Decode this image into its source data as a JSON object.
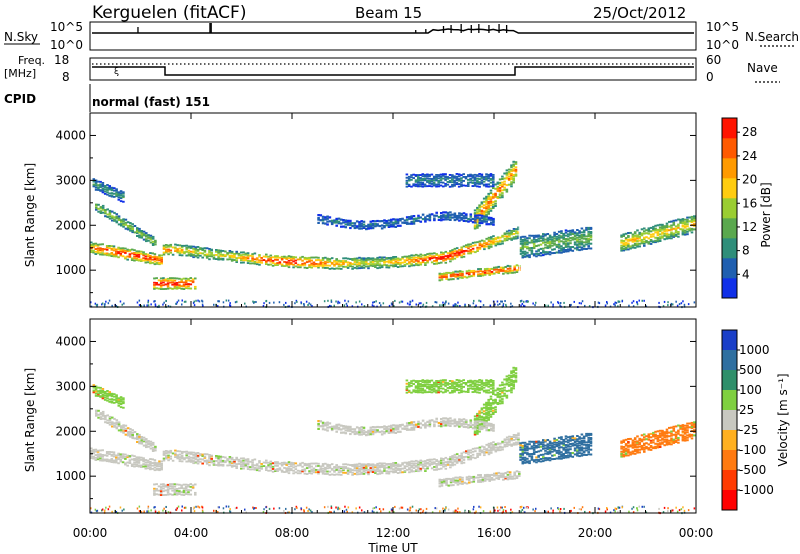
{
  "header": {
    "station": "Kerguelen (fitACF)",
    "beam": "Beam 15",
    "date": "25/Oct/2012"
  },
  "top_panels": {
    "nsky_label": "N.Sky",
    "nsky_ticks": [
      "10^5",
      "10^0"
    ],
    "nsearch_label": "N.Search",
    "nsearch_ticks": [
      "10^5",
      "10^0"
    ],
    "freq_label_1": "Freq.",
    "freq_label_2": "[MHz]",
    "freq_ticks": [
      "18",
      "8"
    ],
    "nave_label": "Nave",
    "nave_ticks": [
      "60",
      "0"
    ],
    "cpid_label": "CPID",
    "cpid_value": "normal (fast) 151"
  },
  "chart_data": [
    {
      "type": "heatmap",
      "ylabel": "Slant Range [km]",
      "yticks": [
        "1000",
        "2000",
        "3000",
        "4000"
      ],
      "ylim": [
        180,
        4500
      ],
      "colorbar": {
        "label": "Power [dB]",
        "ticks": [
          "4",
          "8",
          "12",
          "16",
          "20",
          "24",
          "28"
        ],
        "range": [
          0,
          30
        ],
        "colors": [
          "#1030e8",
          "#1f5fb0",
          "#2f8e7a",
          "#5aa84e",
          "#9acd32",
          "#ffcc10",
          "#ff9a00",
          "#ff5a00",
          "#ff1400"
        ]
      }
    },
    {
      "type": "heatmap",
      "ylabel": "Slant Range [km]",
      "yticks": [
        "1000",
        "2000",
        "3000",
        "4000"
      ],
      "ylim": [
        180,
        4500
      ],
      "colorbar": {
        "label": "Velocity [m s⁻¹]",
        "ticks": [
          "1000",
          "500",
          "100",
          "25",
          "-25",
          "-100",
          "-500",
          "-1000"
        ],
        "colors": [
          "#1a3fc8",
          "#2f6fa0",
          "#2f8f6a",
          "#7fcf40",
          "#c8c8c0",
          "#ffb020",
          "#ff7a10",
          "#ff3a00",
          "#ff0000"
        ]
      }
    }
  ],
  "time_axis": {
    "label": "Time UT",
    "ticks": [
      "00:00",
      "04:00",
      "08:00",
      "12:00",
      "16:00",
      "20:00",
      "00:00"
    ]
  }
}
